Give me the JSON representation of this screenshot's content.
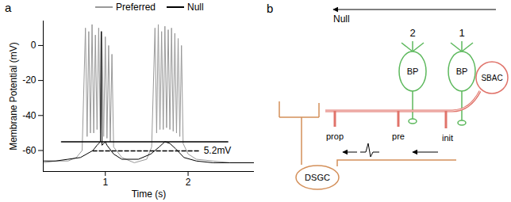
{
  "chart_data": {
    "type": "line",
    "panel": "a",
    "xlabel": "Time (s)",
    "ylabel": "Membrane Potential (mV)",
    "xlim": [
      0.25,
      2.8
    ],
    "xticks": [
      1,
      2
    ],
    "ylim": [
      -72,
      14
    ],
    "yticks": [
      -60,
      -40,
      -20,
      0
    ],
    "legend": "top",
    "series": [
      {
        "name": "Preferred",
        "color": "#999999",
        "line_style": "solid",
        "x": [
          0.25,
          0.4,
          0.55,
          0.65,
          0.72,
          0.76,
          0.78,
          0.8,
          0.82,
          0.84,
          0.86,
          0.88,
          0.9,
          0.92,
          0.94,
          0.96,
          0.98,
          1.0,
          1.02,
          1.04,
          1.06,
          1.08,
          1.1,
          1.2,
          1.35,
          1.5,
          1.56,
          1.6,
          1.62,
          1.64,
          1.66,
          1.68,
          1.7,
          1.72,
          1.74,
          1.76,
          1.78,
          1.8,
          1.82,
          1.84,
          1.86,
          1.88,
          1.9,
          1.92,
          1.94,
          2.0,
          2.1,
          2.3,
          2.5,
          2.8
        ],
        "values": [
          -67,
          -66,
          -66,
          -64,
          -60,
          10,
          -52,
          8,
          -50,
          12,
          -50,
          6,
          -48,
          10,
          -50,
          8,
          -52,
          5,
          -53,
          0,
          -55,
          -5,
          -58,
          -64,
          -67,
          -65,
          -58,
          10,
          -50,
          12,
          -48,
          8,
          -48,
          11,
          -47,
          9,
          -48,
          10,
          -49,
          7,
          -50,
          4,
          -52,
          0,
          -56,
          -62,
          -65,
          -66,
          -67,
          -67
        ]
      },
      {
        "name": "Null",
        "color": "#000000",
        "line_style": "solid",
        "x": [
          0.25,
          0.4,
          0.55,
          0.7,
          0.85,
          0.9,
          0.94,
          0.95,
          0.96,
          0.98,
          1.0,
          1.02,
          1.1,
          1.2,
          1.4,
          1.55,
          1.65,
          1.72,
          1.78,
          1.85,
          1.95,
          2.1,
          2.3,
          2.5,
          2.8
        ],
        "values": [
          -66,
          -66,
          -65,
          -64,
          -60,
          -57,
          -55,
          8,
          -57,
          -56,
          -55,
          -57,
          -62,
          -65,
          -65,
          -62,
          -58,
          -55,
          -56,
          -59,
          -64,
          -66,
          -67,
          -67,
          -67
        ]
      }
    ],
    "annotations": [
      {
        "type": "hline",
        "y": -55,
        "x": [
          0.47,
          2.48
        ],
        "line_style": "solid"
      },
      {
        "type": "hline",
        "y": -60.2,
        "x": [
          0.85,
          2.15
        ],
        "line_style": "dashed",
        "text": "5.2mV"
      }
    ]
  },
  "diagram": {
    "panel": "b",
    "direction_label": "Null",
    "bipolar_cells": [
      {
        "number": 2,
        "label": "BP"
      },
      {
        "number": 1,
        "label": "BP"
      }
    ],
    "starburst_cell": "SBAC",
    "ganglion_cell": "DSGC",
    "synapse_labels": {
      "propagation": "prop",
      "presynaptic": "pre",
      "initiation": "init"
    }
  }
}
